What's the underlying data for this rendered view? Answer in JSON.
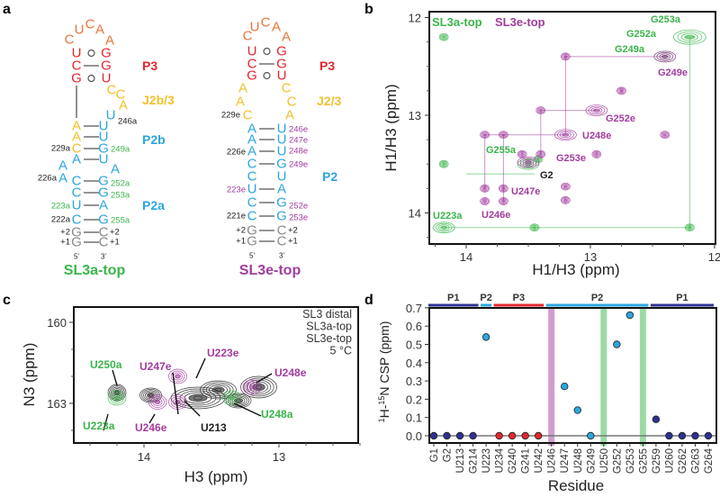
{
  "panel_labels": {
    "a": "a",
    "b": "b",
    "c": "c",
    "d": "d"
  },
  "colors": {
    "orange": "#e8743b",
    "red": "#e3262f",
    "yellow": "#f2c12e",
    "blue": "#2ca6de",
    "gray": "#8a8a8a",
    "green": "#3ab54a",
    "purple": "#a23c9f",
    "navy": "#2e3192",
    "black": "#222222"
  },
  "structure_a": {
    "title": "SL3a-top",
    "nucleotides": [
      "C",
      "U",
      "C",
      "A",
      "A",
      "U",
      "G",
      "C",
      "G",
      "G",
      "U",
      "C",
      "C",
      "A",
      "U",
      "A",
      "U",
      "A",
      "U",
      "C",
      "G",
      "A",
      "U",
      "A",
      "A",
      "A",
      "C",
      "G",
      "C",
      "G",
      "U",
      "A",
      "C",
      "G",
      "G",
      "C",
      "G",
      "C"
    ],
    "numbers": [
      "246a",
      "229a",
      "249a",
      "226a",
      "252a",
      "253a",
      "223a",
      "222a",
      "255a",
      "+2",
      "+2",
      "+1",
      "+1",
      "5'",
      "3'"
    ],
    "regions": [
      "P3",
      "J2b/3",
      "P2b",
      "P2a"
    ]
  },
  "structure_e": {
    "title": "SL3e-top",
    "nucleotides": [
      "C",
      "U",
      "C",
      "A",
      "A",
      "U",
      "G",
      "C",
      "G",
      "G",
      "U",
      "A",
      "A",
      "C",
      "C",
      "C",
      "A",
      "A",
      "U",
      "A",
      "U",
      "A",
      "U",
      "C",
      "G",
      "C",
      "U",
      "U",
      "A",
      "C",
      "G",
      "C",
      "G",
      "G",
      "C",
      "G",
      "C"
    ],
    "numbers": [
      "229e",
      "246e",
      "247e",
      "248e",
      "249e",
      "226e",
      "223e",
      "252e",
      "253e",
      "221e",
      "+2",
      "+2",
      "+1",
      "+1",
      "5'",
      "3'"
    ],
    "regions": [
      "P3",
      "J2/3",
      "P2"
    ]
  },
  "chart_data": [
    {
      "panel": "b",
      "type": "scatter",
      "title": "",
      "xlabel": "H1/H3 (ppm)",
      "ylabel": "H1/H3 (ppm)",
      "xlim": [
        14.3,
        12.0
      ],
      "ylim": [
        12.0,
        14.3
      ],
      "xticks": [
        "14",
        "13",
        "12"
      ],
      "yticks": [
        "12",
        "13",
        "14"
      ],
      "legend": [
        "SL3a-top",
        "SL3e-top"
      ],
      "legend_placement": "top-left",
      "series": [
        {
          "name": "SL3a-top",
          "color": "green",
          "points": [
            [
              14.18,
              12.2
            ],
            [
              14.18,
              13.5
            ],
            [
              14.18,
              14.15
            ],
            [
              13.45,
              14.15
            ],
            [
              12.2,
              14.15
            ],
            [
              12.2,
              12.2
            ],
            [
              12.4,
              12.4
            ],
            [
              13.5,
              13.5
            ],
            [
              13.42,
              13.45
            ]
          ]
        },
        {
          "name": "SL3e-top",
          "color": "purple",
          "points": [
            [
              12.4,
              12.4
            ],
            [
              13.2,
              12.4
            ],
            [
              12.75,
              12.75
            ],
            [
              12.95,
              12.95
            ],
            [
              13.4,
              12.95
            ],
            [
              13.2,
              13.2
            ],
            [
              13.4,
              13.4
            ],
            [
              13.5,
              13.48
            ],
            [
              13.85,
              13.2
            ],
            [
              13.7,
              13.2
            ],
            [
              13.85,
              13.75
            ],
            [
              13.7,
              13.75
            ],
            [
              13.85,
              13.88
            ],
            [
              13.7,
              13.88
            ],
            [
              12.95,
              13.4
            ],
            [
              12.4,
              13.2
            ],
            [
              13.2,
              13.73
            ],
            [
              13.2,
              13.87
            ],
            [
              13.55,
              13.4
            ]
          ]
        }
      ],
      "annotations": [
        {
          "text": "G253a",
          "color": "green"
        },
        {
          "text": "G252a",
          "color": "green"
        },
        {
          "text": "G249a",
          "color": "green"
        },
        {
          "text": "G249e",
          "color": "purple"
        },
        {
          "text": "G252e",
          "color": "purple"
        },
        {
          "text": "U248e",
          "color": "purple"
        },
        {
          "text": "G255a",
          "color": "green"
        },
        {
          "text": "G253e",
          "color": "purple"
        },
        {
          "text": "G2",
          "color": "black"
        },
        {
          "text": "U247e",
          "color": "purple"
        },
        {
          "text": "U246e",
          "color": "purple"
        },
        {
          "text": "U223a",
          "color": "green"
        }
      ]
    },
    {
      "panel": "c",
      "type": "scatter",
      "xlabel": "H3 (ppm)",
      "ylabel": "N3 (ppm)",
      "xlim": [
        14.4,
        12.4
      ],
      "ylim": [
        159.5,
        164.5
      ],
      "xticks": [
        "14",
        "13"
      ],
      "yticks": [
        "160",
        "163"
      ],
      "legend": [
        "SL3 distal",
        "SL3a-top",
        "SL3e-top",
        "5 °C"
      ],
      "legend_placement": "top-right",
      "series": [
        {
          "name": "SL3 distal",
          "color": "black",
          "points": [
            [
              14.2,
              162.6
            ],
            [
              13.6,
              162.8
            ],
            [
              13.45,
              162.5
            ],
            [
              13.15,
              162.4
            ],
            [
              13.95,
              162.7
            ],
            [
              13.3,
              162.9
            ]
          ]
        },
        {
          "name": "SL3a-top",
          "color": "green",
          "points": [
            [
              14.2,
              162.8
            ],
            [
              13.35,
              162.8
            ]
          ]
        },
        {
          "name": "SL3e-top",
          "color": "purple",
          "points": [
            [
              13.9,
              162.95
            ],
            [
              13.75,
              162.95
            ],
            [
              13.75,
              162.0
            ],
            [
              13.2,
              162.4
            ]
          ]
        }
      ],
      "annotations": [
        {
          "text": "U250a",
          "color": "green"
        },
        {
          "text": "U223a",
          "color": "green"
        },
        {
          "text": "U247e",
          "color": "purple"
        },
        {
          "text": "U223e",
          "color": "purple"
        },
        {
          "text": "U246e",
          "color": "purple"
        },
        {
          "text": "U213",
          "color": "black"
        },
        {
          "text": "U248e",
          "color": "purple"
        },
        {
          "text": "U248a",
          "color": "green"
        }
      ]
    },
    {
      "panel": "d",
      "type": "scatter",
      "xlabel": "Residue",
      "ylabel": "1H-15N CSP (ppm)",
      "ylim": [
        -0.05,
        0.7
      ],
      "yticks": [
        "0.0",
        "0.1",
        "0.2",
        "0.3",
        "0.4",
        "0.5",
        "0.6",
        "0.7"
      ],
      "categories": [
        "G1",
        "G2",
        "U213",
        "G214",
        "U223",
        "U234",
        "G240",
        "G241",
        "U242",
        "U246",
        "U247",
        "U248",
        "G249",
        "U250",
        "G252",
        "G253",
        "G255",
        "G259",
        "U260",
        "G262",
        "G263",
        "G264"
      ],
      "values": [
        0,
        0,
        0,
        0,
        0.54,
        0,
        0,
        0,
        0,
        null,
        0.27,
        0.14,
        0,
        null,
        0.5,
        0.66,
        null,
        0.09,
        0,
        0,
        0,
        0
      ],
      "point_colors": [
        "navy",
        "navy",
        "navy",
        "navy",
        "blue",
        "red",
        "red",
        "red",
        "red",
        null,
        "blue",
        "blue",
        "blue",
        null,
        "blue",
        "blue",
        null,
        "navy",
        "navy",
        "navy",
        "navy",
        "navy"
      ],
      "highlight_bands": [
        {
          "category": "U246",
          "color": "purple"
        },
        {
          "category": "U250",
          "color": "green"
        },
        {
          "category": "G255",
          "color": "green"
        }
      ],
      "regions": [
        {
          "label": "P1",
          "from": "G1",
          "to": "G214",
          "color": "navy"
        },
        {
          "label": "P2",
          "from": "U223",
          "to": "U223",
          "color": "blue"
        },
        {
          "label": "P3",
          "from": "U234",
          "to": "U242",
          "color": "red"
        },
        {
          "label": "P2",
          "from": "U246",
          "to": "G255",
          "color": "blue"
        },
        {
          "label": "P1",
          "from": "G259",
          "to": "G264",
          "color": "navy"
        }
      ]
    }
  ]
}
